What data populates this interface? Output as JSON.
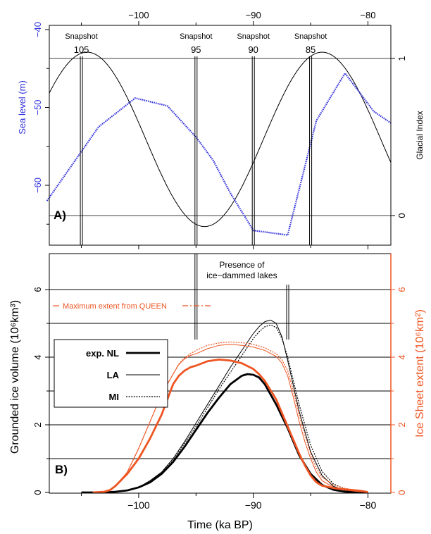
{
  "chart_data": [
    {
      "panel_label": "A)",
      "type": "line",
      "x_ticks": [
        "−100",
        "−90",
        "−80"
      ],
      "left_axis": {
        "label": "Sea level (m)",
        "ticks": [
          "−40",
          "−50",
          "−60"
        ],
        "ylim": [
          -67.5,
          -39.5
        ],
        "color": "#3333dd"
      },
      "right_axis": {
        "label": "Glacial Index",
        "ticks": [
          "1",
          "0"
        ]
      },
      "xlim": [
        -107.8,
        -78
      ],
      "snapshots": [
        {
          "word": "Snapshot",
          "number": "105",
          "x": -105
        },
        {
          "word": "Snapshot",
          "number": "95",
          "x": -95
        },
        {
          "word": "Snapshot",
          "number": "90",
          "x": -90
        },
        {
          "word": "Snapshot",
          "number": "85",
          "x": -85
        }
      ],
      "sea_level_series": {
        "color": "#3333dd",
        "x": [
          -108,
          -103.5,
          -100.3,
          -97.5,
          -95,
          -93.5,
          -92,
          -90,
          -87,
          -84.5,
          -82,
          -79.5,
          -78
        ],
        "y": [
          -62,
          -52.5,
          -48.8,
          -49.8,
          -53.8,
          -56.8,
          -61,
          -65.8,
          -66.4,
          -51.7,
          -45.6,
          -50.5,
          -52
        ]
      },
      "glacial_index_curve": {
        "period_ka": 20.5,
        "max_x": -104.5,
        "gi_at_minus43": 1.04,
        "gi_at_minus64": -0.07
      }
    },
    {
      "panel_label": "B)",
      "type": "line",
      "xlabel": "Time (ka BP)",
      "x_ticks": [
        "−100",
        "−90",
        "−80"
      ],
      "xlim": [
        -107.8,
        -78
      ],
      "left_axis": {
        "label": "Grounded ice volume (10⁶km³)",
        "ticks": [
          "0",
          "2",
          "4",
          "6"
        ],
        "ylim": [
          -0.05,
          7
        ]
      },
      "right_axis": {
        "label": "Ice Sheet extent (10⁶km²)",
        "ticks": [
          "0",
          "2",
          "4",
          "6"
        ],
        "color": "#ee5522"
      },
      "annotation": "Presence of\nice−dammed lakes",
      "lake_bracket": {
        "x": [
          -95,
          -87
        ]
      },
      "queen_line": {
        "label": "Maximum extent from QUEEN",
        "y": 5.65,
        "color": "#ee5522"
      },
      "legend": [
        {
          "label": "exp. NL",
          "style": "thick"
        },
        {
          "label": "LA",
          "style": "thin"
        },
        {
          "label": "MI",
          "style": "dotted"
        }
      ],
      "series": [
        {
          "name": "exp. NL",
          "quantity": "volume",
          "x": [
            -105,
            -103,
            -102,
            -101,
            -100,
            -99,
            -98,
            -97,
            -96,
            -95,
            -94,
            -93,
            -92,
            -91,
            -90.5,
            -90,
            -89.5,
            -89,
            -88,
            -87,
            -86,
            -85,
            -84,
            -83,
            -82,
            -81,
            -80
          ],
          "y": [
            0,
            0,
            0.02,
            0.06,
            0.15,
            0.3,
            0.55,
            0.9,
            1.35,
            1.85,
            2.35,
            2.8,
            3.2,
            3.45,
            3.5,
            3.48,
            3.4,
            3.2,
            2.6,
            1.9,
            1.1,
            0.55,
            0.22,
            0.08,
            0.02,
            0.01,
            0
          ]
        },
        {
          "name": "LA",
          "quantity": "volume",
          "x": [
            -105,
            -103,
            -102,
            -101,
            -100,
            -99,
            -98,
            -97,
            -96,
            -95,
            -94,
            -93,
            -92,
            -91,
            -90,
            -89.5,
            -89,
            -88.5,
            -88,
            -87.5,
            -87,
            -86,
            -85,
            -84,
            -83,
            -82,
            -81,
            -80
          ],
          "y": [
            0,
            0,
            0.02,
            0.06,
            0.15,
            0.35,
            0.6,
            1.0,
            1.5,
            2.05,
            2.6,
            3.15,
            3.7,
            4.2,
            4.7,
            4.9,
            5.05,
            5.1,
            5.0,
            4.6,
            3.9,
            2.4,
            1.2,
            0.5,
            0.18,
            0.06,
            0.02,
            0
          ]
        },
        {
          "name": "MI",
          "quantity": "volume",
          "x": [
            -105,
            -103,
            -102,
            -101,
            -100,
            -99,
            -98,
            -97,
            -96,
            -95,
            -94,
            -93,
            -92,
            -91,
            -90,
            -89.5,
            -89,
            -88.5,
            -88,
            -87.5,
            -87,
            -86,
            -85,
            -84,
            -83,
            -82,
            -81,
            -80
          ],
          "y": [
            0,
            0,
            0.02,
            0.06,
            0.15,
            0.33,
            0.58,
            0.95,
            1.45,
            1.95,
            2.5,
            3.05,
            3.55,
            4.05,
            4.55,
            4.75,
            4.9,
            4.95,
            4.88,
            4.55,
            4.0,
            2.6,
            1.4,
            0.62,
            0.25,
            0.1,
            0.03,
            0.01
          ]
        },
        {
          "name": "exp. NL",
          "quantity": "extent",
          "x": [
            -104,
            -103,
            -102.5,
            -102,
            -101,
            -100,
            -99,
            -98,
            -97.5,
            -97,
            -96.5,
            -96,
            -95.5,
            -95,
            -94,
            -93,
            -92,
            -91,
            -90,
            -89.5,
            -89,
            -88,
            -87,
            -86,
            -85.5,
            -85,
            -84.5,
            -84,
            -83,
            -82,
            -81,
            -80.5,
            -80
          ],
          "y": [
            0,
            0.02,
            0.07,
            0.2,
            0.55,
            1.0,
            1.6,
            2.3,
            2.75,
            3.2,
            3.45,
            3.6,
            3.7,
            3.75,
            3.88,
            3.93,
            3.9,
            3.82,
            3.65,
            3.5,
            3.3,
            2.75,
            1.95,
            1.15,
            0.8,
            0.5,
            0.3,
            0.2,
            0.13,
            0.09,
            0.06,
            0.04,
            0.01
          ]
        },
        {
          "name": "LA",
          "quantity": "extent",
          "x": [
            -104,
            -103,
            -102.5,
            -102,
            -101,
            -100,
            -99,
            -98,
            -97,
            -96.5,
            -96,
            -95.5,
            -95,
            -94,
            -93,
            -92,
            -91,
            -90,
            -89,
            -88,
            -87.5,
            -87,
            -86.5,
            -86,
            -85.5,
            -85,
            -84.5,
            -84,
            -83,
            -82,
            -81,
            -80
          ],
          "y": [
            0,
            0.02,
            0.06,
            0.2,
            0.6,
            1.3,
            2.1,
            2.9,
            3.5,
            3.78,
            3.95,
            4.05,
            4.1,
            4.25,
            4.35,
            4.38,
            4.35,
            4.3,
            4.2,
            4.02,
            3.82,
            3.45,
            2.8,
            2.1,
            1.5,
            1.0,
            0.6,
            0.35,
            0.15,
            0.07,
            0.03,
            0.01
          ]
        },
        {
          "name": "MI",
          "quantity": "extent",
          "x": [
            -104,
            -103,
            -102.5,
            -102,
            -101,
            -100,
            -99,
            -98,
            -97,
            -96.5,
            -96,
            -95.5,
            -95,
            -94,
            -93,
            -92,
            -91,
            -90,
            -89,
            -88,
            -87.5,
            -87,
            -86.5,
            -86,
            -85.5,
            -85,
            -84.5,
            -84,
            -83,
            -82,
            -81,
            -80
          ],
          "y": [
            0,
            0.02,
            0.06,
            0.2,
            0.6,
            1.3,
            2.1,
            2.9,
            3.5,
            3.8,
            3.98,
            4.1,
            4.2,
            4.35,
            4.42,
            4.45,
            4.43,
            4.38,
            4.28,
            4.1,
            3.92,
            3.6,
            3.0,
            2.3,
            1.7,
            1.15,
            0.72,
            0.45,
            0.22,
            0.12,
            0.06,
            0.02
          ]
        }
      ]
    }
  ]
}
